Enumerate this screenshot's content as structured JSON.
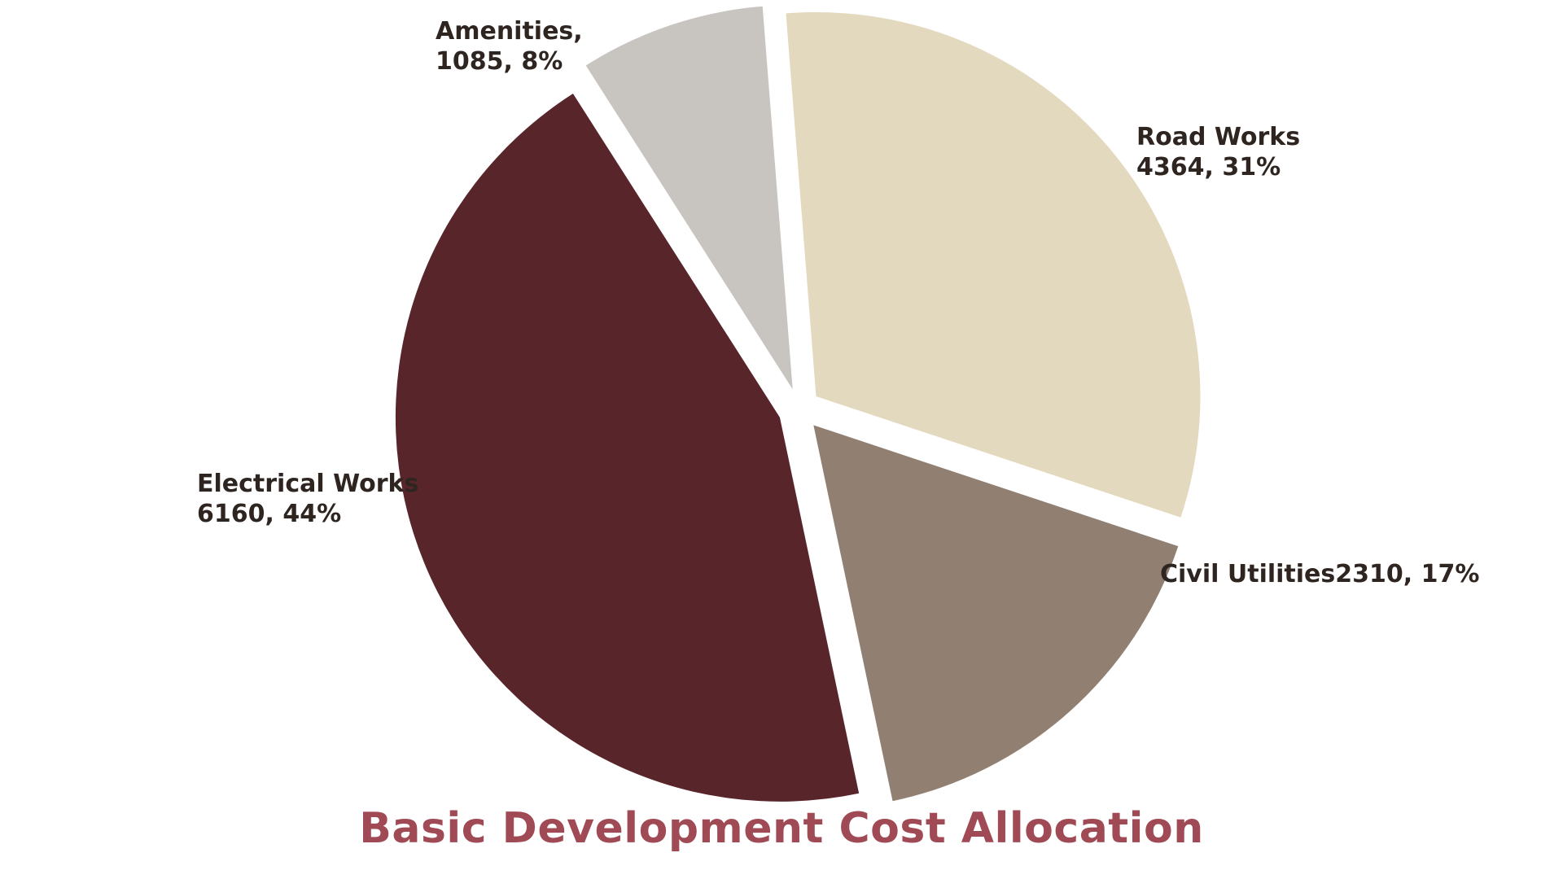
{
  "chart_data": {
    "type": "pie",
    "title": "Basic Development Cost Allocation",
    "title_color": "#a04a55",
    "label_color": "#2e2520",
    "slices": [
      {
        "name": "Road Works",
        "value": 4364,
        "percent": "31%",
        "label_lines": [
          "Road Works",
          "4364, 31%"
        ],
        "color": "#e3d9be"
      },
      {
        "name": "Civil Utilities",
        "value": 2310,
        "percent": "17%",
        "label_lines": [
          "Civil Utilities2310, 17%"
        ],
        "color": "#918072"
      },
      {
        "name": "Electrical Works",
        "value": 6160,
        "percent": "44%",
        "label_lines": [
          "Electrical Works",
          "6160, 44%"
        ],
        "color": "#58252b"
      },
      {
        "name": "Amenities",
        "value": 1085,
        "percent": "8%",
        "label_lines": [
          "Amenities,",
          "1085, 8%"
        ],
        "color": "#c8c4c0"
      }
    ],
    "legend": "none"
  }
}
